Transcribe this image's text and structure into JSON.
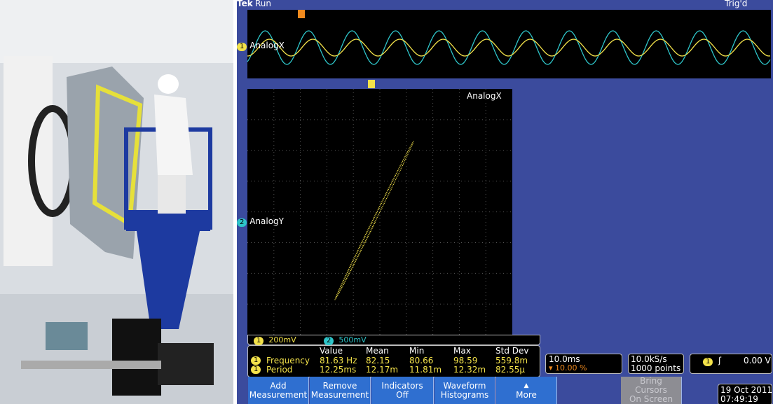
{
  "header": {
    "brand": "Tek",
    "state": "Run",
    "trigger_state": "Trig'd"
  },
  "channels": {
    "ch1_marker": "1",
    "ch2_marker": "2",
    "top_label": "AnalogX",
    "xy_x_label": "AnalogX",
    "xy_y_label": "AnalogY",
    "ch1_scale": "200mV",
    "ch2_scale": "500mV"
  },
  "measurements": {
    "headers": [
      "Value",
      "Mean",
      "Min",
      "Max",
      "Std Dev"
    ],
    "rows": [
      {
        "marker": "1",
        "name": "Frequency",
        "cells": [
          "81.63 Hz",
          "82.15",
          "80.66",
          "98.59",
          "559.8m"
        ]
      },
      {
        "marker": "1",
        "name": "Period",
        "cells": [
          "12.25ms",
          "12.17m",
          "11.81m",
          "12.32m",
          "82.55µ"
        ]
      }
    ]
  },
  "status": {
    "timebase": "10.0ms",
    "trigger_position": "10.00 %",
    "sample_rate": "10.0kS/s",
    "record_length": "1000 points",
    "trigger_channel": "1",
    "trigger_level": "0.00 V",
    "date": "19 Oct 2011",
    "time": "07:49:19"
  },
  "buttons": [
    {
      "lines": [
        "Add",
        "Measurement"
      ]
    },
    {
      "lines": [
        "Remove",
        "Measurement"
      ]
    },
    {
      "lines": [
        "Indicators",
        "Off"
      ]
    },
    {
      "lines": [
        "Waveform",
        "Histograms"
      ]
    },
    {
      "lines": [
        "More"
      ]
    },
    {
      "lines": [
        "Bring",
        "Cursors",
        "On Screen"
      ]
    }
  ]
}
